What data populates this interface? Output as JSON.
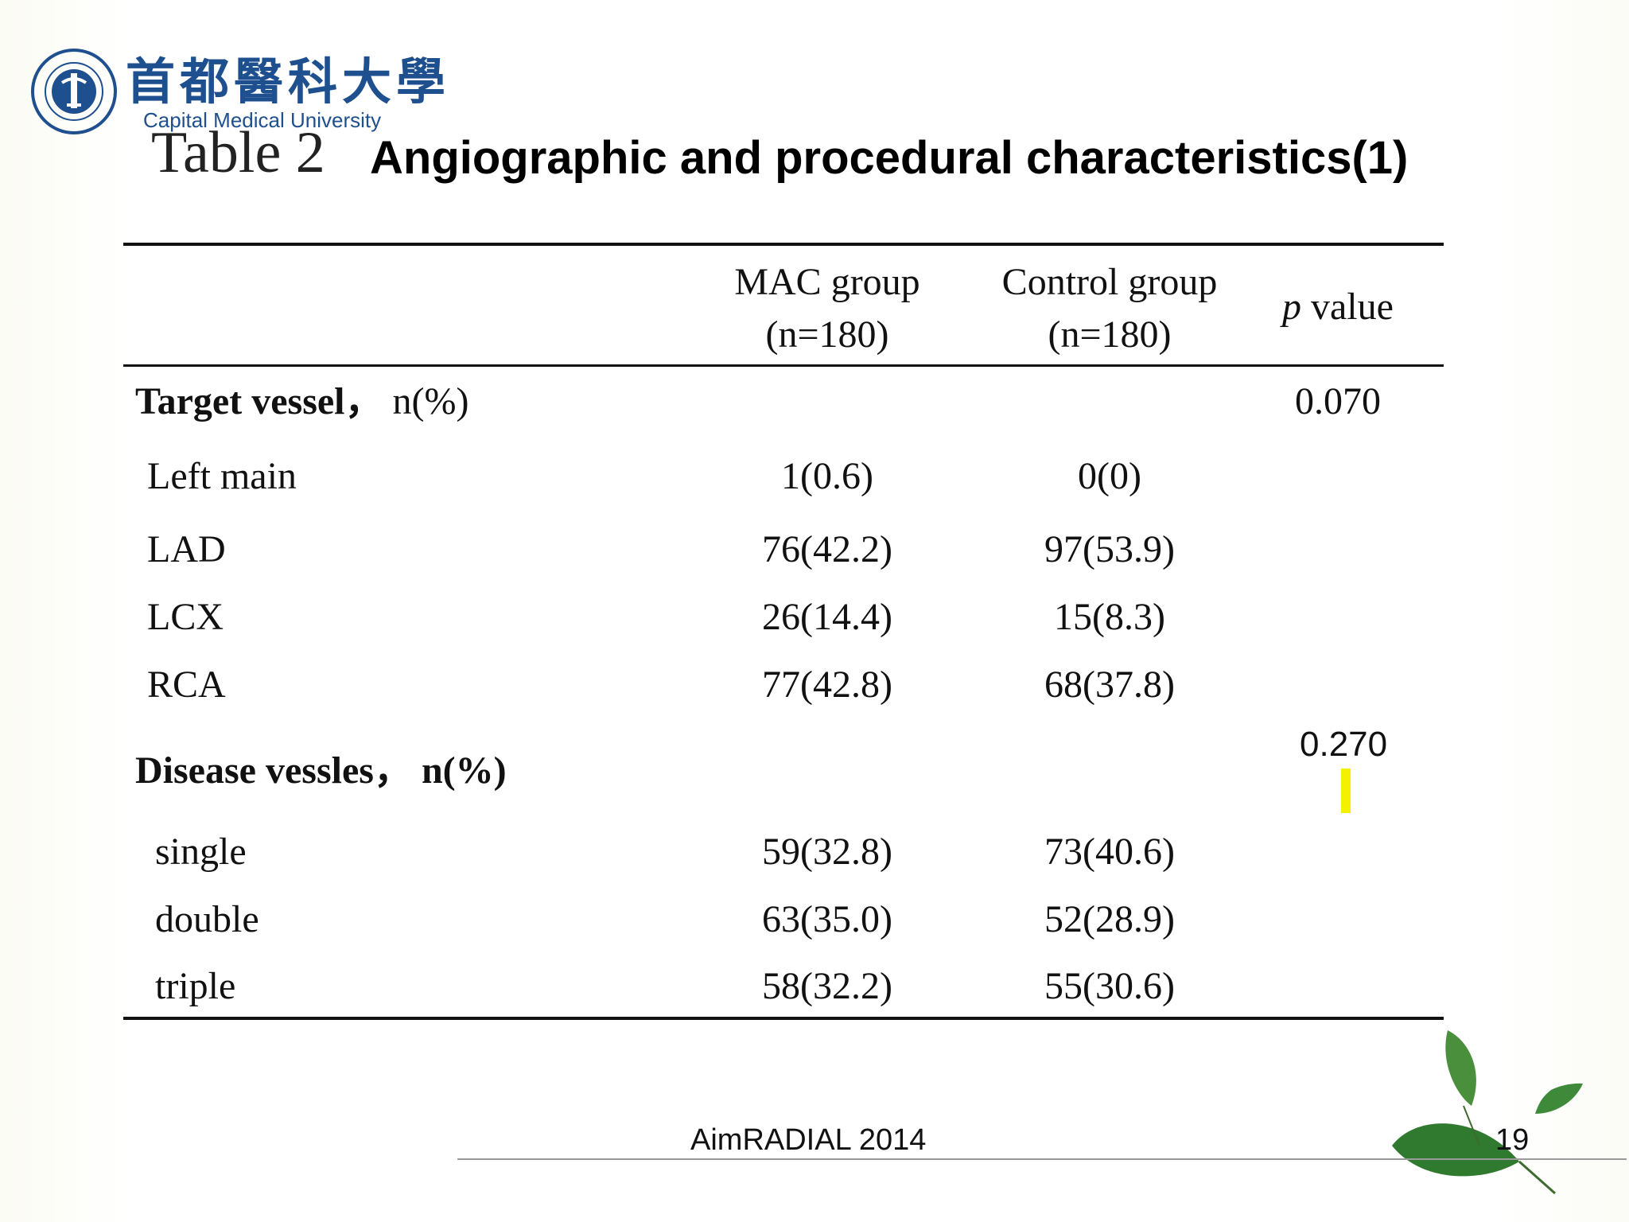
{
  "header": {
    "university_cn": "首都醫科大學",
    "university_en": "Capital Medical University",
    "logo_text": "CAPITAL MEDICAL UNIVERSITY"
  },
  "title": {
    "prefix": "Table 2",
    "text": "Angiographic and procedural characteristics(1)"
  },
  "table": {
    "columns": {
      "mac_line1": "MAC group",
      "mac_line2": "(n=180)",
      "ctrl_line1": "Control group",
      "ctrl_line2": "(n=180)",
      "p_italic": "p",
      "p_rest": " value"
    },
    "sections": [
      {
        "label": "Target vessel，",
        "unit": "n(%)",
        "p": "0.070",
        "rows": [
          {
            "name": "Left main",
            "mac": "1(0.6)",
            "ctrl": "0(0)"
          },
          {
            "name": "LAD",
            "mac": "76(42.2)",
            "ctrl": "97(53.9)"
          },
          {
            "name": "LCX",
            "mac": "26(14.4)",
            "ctrl": "15(8.3)"
          },
          {
            "name": "RCA",
            "mac": "77(42.8)",
            "ctrl": "68(37.8)"
          }
        ]
      },
      {
        "label": "Disease vessles，",
        "unit": "n(%)",
        "p": "0.270",
        "rows": [
          {
            "name": "single",
            "mac": "59(32.8)",
            "ctrl": "73(40.6)"
          },
          {
            "name": "double",
            "mac": "63(35.0)",
            "ctrl": "52(28.9)"
          },
          {
            "name": "triple",
            "mac": "58(32.2)",
            "ctrl": "55(30.6)"
          }
        ]
      }
    ]
  },
  "footer": {
    "text": "AimRADIAL 2014",
    "page": "19"
  },
  "colors": {
    "brand_blue": "#1e4f8f",
    "highlight_yellow": "#f3f000",
    "leaf_green": "#3f8a3a"
  }
}
